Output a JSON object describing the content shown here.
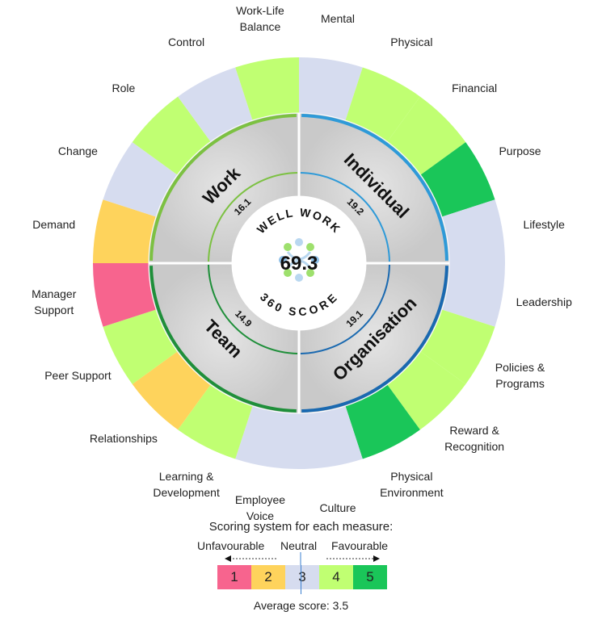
{
  "chart_data": {
    "type": "sunburst",
    "center": {
      "top_text": "WELL WORK",
      "score": "69.3",
      "bottom_text": "360 SCORE"
    },
    "domains": [
      {
        "name": "Individual",
        "score": "19.2",
        "ring_color": "#2e9ad8",
        "segments": [
          {
            "label": "Mental",
            "value": 3
          },
          {
            "label": "Physical",
            "value": 4
          },
          {
            "label": "Financial",
            "value": 4
          },
          {
            "label": "Purpose",
            "value": 5
          },
          {
            "label": "Lifestyle",
            "value": 3
          }
        ]
      },
      {
        "name": "Organisation",
        "score": "19.1",
        "ring_color": "#1a69b0",
        "segments": [
          {
            "label": "Leadership",
            "value": 3
          },
          {
            "label": "Policies &\nPrograms",
            "value": 4
          },
          {
            "label": "Reward &\nRecognition",
            "value": 4
          },
          {
            "label": "Physical\nEnvironment",
            "value": 5
          },
          {
            "label": "Culture",
            "value": 3
          }
        ]
      },
      {
        "name": "Team",
        "score": "14.9",
        "ring_color": "#1f8f3a",
        "segments": [
          {
            "label": "Employee\nVoice",
            "value": 3
          },
          {
            "label": "Learning &\nDevelopment",
            "value": 4
          },
          {
            "label": "Relationships",
            "value": 2
          },
          {
            "label": "Peer Support",
            "value": 4
          },
          {
            "label": "Manager\nSupport",
            "value": 1
          }
        ]
      },
      {
        "name": "Work",
        "score": "16.1",
        "ring_color": "#7cc142",
        "segments": [
          {
            "label": "Demand",
            "value": 2
          },
          {
            "label": "Change",
            "value": 3
          },
          {
            "label": "Role",
            "value": 4
          },
          {
            "label": "Control",
            "value": 3
          },
          {
            "label": "Work-Life\nBalance",
            "value": 4
          }
        ]
      }
    ],
    "score_colors": {
      "1": "#f7648e",
      "2": "#fed35c",
      "3": "#d6dcef",
      "4": "#c0ff72",
      "5": "#1ac659"
    }
  },
  "legend": {
    "title": "Scoring system for each measure:",
    "unfavourable": "Unfavourable",
    "neutral": "Neutral",
    "favourable": "Favourable",
    "scores": [
      "1",
      "2",
      "3",
      "4",
      "5"
    ],
    "average_label": "Average score:",
    "average_value": "3.5"
  }
}
